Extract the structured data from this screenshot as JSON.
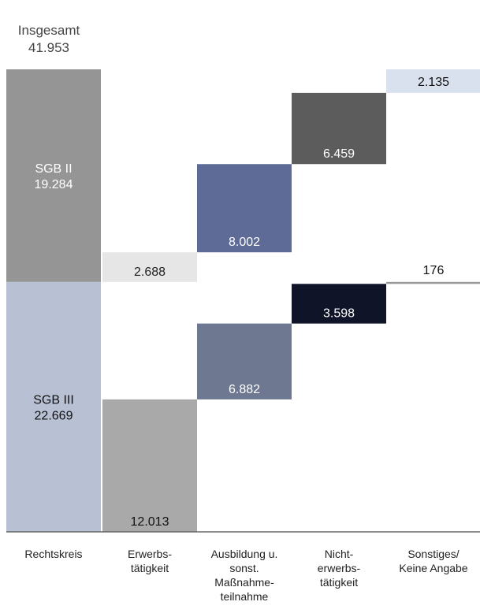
{
  "chart_data": {
    "type": "bar",
    "subtype": "stacked-waterfall",
    "total": {
      "label": "Insgesamt",
      "value": "41.953"
    },
    "ylim": [
      0,
      41953
    ],
    "categories": [
      {
        "id": "rechtskreis",
        "lines": [
          "Rechtskreis"
        ]
      },
      {
        "id": "erwerbstaetigkeit",
        "lines": [
          "Erwerbs-",
          "tätigkeit"
        ]
      },
      {
        "id": "ausbildung",
        "lines": [
          "Ausbildung u.",
          "sonst.",
          "Maßnahme-",
          "teilnahme"
        ]
      },
      {
        "id": "nichterwerbstaetigkeit",
        "lines": [
          "Nicht-",
          "erwerbs-",
          "tätigkeit"
        ]
      },
      {
        "id": "sonstiges",
        "lines": [
          "Sonstiges/",
          "Keine Angabe"
        ]
      }
    ],
    "groups": [
      {
        "id": "sgb3",
        "bars": [
          {
            "category": "rechtskreis",
            "lines": [
              "SGB III",
              "22.669"
            ],
            "value": 22669,
            "base": 0,
            "color": "#b8c1d4",
            "text_color": "#111111",
            "label_pos": "center"
          },
          {
            "category": "erwerbstaetigkeit",
            "lines": [
              "12.013"
            ],
            "value": 12013,
            "base": 0,
            "color": "#a9a9a9",
            "text_color": "#111111",
            "label_pos": "bottom"
          },
          {
            "category": "ausbildung",
            "lines": [
              "6.882"
            ],
            "value": 6882,
            "base": 12013,
            "color": "#6e7891",
            "text_color": "#ffffff",
            "label_pos": "bottom"
          },
          {
            "category": "nichterwerbstaetigkeit",
            "lines": [
              "3.598"
            ],
            "value": 3598,
            "base": 18895,
            "color": "#0f1428",
            "text_color": "#ffffff",
            "label_pos": "bottom"
          },
          {
            "category": "sonstiges",
            "lines": [
              "176"
            ],
            "value": 176,
            "base": 22493,
            "color": "#999999",
            "text_color": "#111111",
            "label_pos": "above"
          }
        ]
      },
      {
        "id": "sgb2",
        "bars": [
          {
            "category": "rechtskreis",
            "lines": [
              "SGB II",
              "19.284"
            ],
            "value": 19284,
            "base": 22669,
            "color": "#959595",
            "text_color": "#ffffff",
            "label_pos": "center"
          },
          {
            "category": "erwerbstaetigkeit",
            "lines": [
              "2.688"
            ],
            "value": 2688,
            "base": 22669,
            "color": "#e6e6e6",
            "text_color": "#222222",
            "label_pos": "bottom"
          },
          {
            "category": "ausbildung",
            "lines": [
              "8.002"
            ],
            "value": 8002,
            "base": 25357,
            "color": "#5e6b96",
            "text_color": "#ffffff",
            "label_pos": "bottom"
          },
          {
            "category": "nichterwerbstaetigkeit",
            "lines": [
              "6.459"
            ],
            "value": 6459,
            "base": 33359,
            "color": "#5c5c5c",
            "text_color": "#ffffff",
            "label_pos": "bottom"
          },
          {
            "category": "sonstiges",
            "lines": [
              "2.135"
            ],
            "value": 2135,
            "base": 39818,
            "color": "#d9e0ee",
            "text_color": "#111111",
            "label_pos": "center"
          }
        ]
      }
    ]
  }
}
